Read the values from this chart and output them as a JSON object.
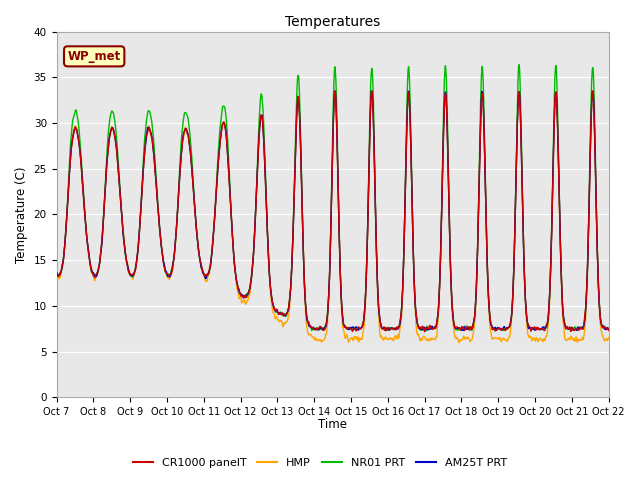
{
  "title": "Temperatures",
  "xlabel": "Time",
  "ylabel": "Temperature (C)",
  "ylim": [
    0,
    40
  ],
  "yticks": [
    0,
    5,
    10,
    15,
    20,
    25,
    30,
    35,
    40
  ],
  "annotation_text": "WP_met",
  "annotation_bg": "#FFFFBB",
  "annotation_border": "#8B0000",
  "series": {
    "CR1000 panelT": {
      "color": "#CC0000",
      "lw": 1.0
    },
    "HMP": {
      "color": "#FFA500",
      "lw": 1.0
    },
    "NR01 PRT": {
      "color": "#00BB00",
      "lw": 1.0
    },
    "AM25T PRT": {
      "color": "#0000CC",
      "lw": 1.0
    }
  },
  "xtick_labels": [
    "Oct 7",
    "Oct 8",
    "Oct 9",
    "Oct 10",
    "Oct 11",
    "Oct 12",
    "Oct 13",
    "Oct 14",
    "Oct 15",
    "Oct 16",
    "Oct 17",
    "Oct 18",
    "Oct 19",
    "Oct 20",
    "Oct 21",
    "Oct 22"
  ],
  "background_color": "#E8E8E8",
  "fig_color": "#FFFFFF",
  "n_days": 15,
  "pts_per_day": 144
}
